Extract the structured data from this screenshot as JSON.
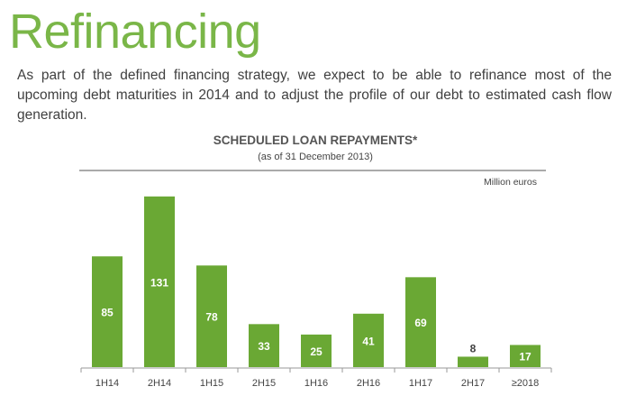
{
  "page": {
    "title": "Refinancing",
    "intro": "As part of the defined financing strategy, we expect to be able to refinance most of the upcoming debt maturities in 2014 and to adjust the profile of our debt to estimated cash flow generation."
  },
  "chart_data": {
    "type": "bar",
    "title": "SCHEDULED LOAN REPAYMENTS*",
    "subtitle": "(as of 31 December 2013)",
    "unit_label": "Million euros",
    "categories": [
      "1H14",
      "2H14",
      "1H15",
      "2H15",
      "1H16",
      "2H16",
      "1H17",
      "2H17",
      "≥2018"
    ],
    "values": [
      85,
      131,
      78,
      33,
      25,
      41,
      69,
      8,
      17
    ],
    "ylim": [
      0,
      135
    ],
    "grid": false,
    "legend": "none",
    "colors": {
      "bar": "#6aa834",
      "label_inside": "#ffffff",
      "label_outside": "#404040",
      "title": "#7ab648"
    }
  }
}
